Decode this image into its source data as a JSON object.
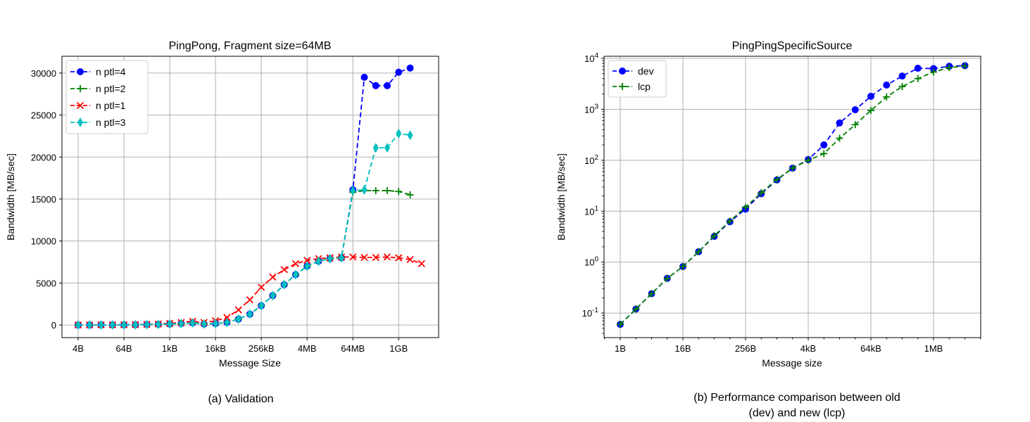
{
  "captions": {
    "left": "(a) Validation",
    "right_line1": "(b) Performance comparison between old",
    "right_line2": "(dev) and new (lcp)"
  },
  "chart_data": [
    {
      "type": "line",
      "title": "PingPong, Fragment size=64MB",
      "xlabel": "Message Size",
      "ylabel": "Bandwidth [MB/sec]",
      "x_scale": "log2",
      "x_tick_labels": [
        "4B",
        "64B",
        "1kB",
        "16kB",
        "256kB",
        "4MB",
        "64MB",
        "1GB"
      ],
      "y_ticks": [
        0,
        5000,
        10000,
        15000,
        20000,
        25000,
        30000
      ],
      "ylim": [
        -1500,
        32000
      ],
      "grid": true,
      "legend_position": "top-left",
      "x": [
        "4B",
        "8B",
        "16B",
        "32B",
        "64B",
        "128B",
        "256B",
        "512B",
        "1kB",
        "2kB",
        "4kB",
        "8kB",
        "16kB",
        "32kB",
        "64kB",
        "128kB",
        "256kB",
        "512kB",
        "1MB",
        "2MB",
        "4MB",
        "8MB",
        "16MB",
        "32MB",
        "64MB",
        "128MB",
        "256MB",
        "512MB",
        "1GB",
        "2GB",
        "4GB"
      ],
      "series": [
        {
          "name": "n ptl=4",
          "color": "#0000ff",
          "marker": "circle",
          "values": [
            2,
            5,
            10,
            15,
            20,
            30,
            50,
            80,
            120,
            180,
            250,
            120,
            180,
            300,
            700,
            1300,
            2300,
            3500,
            4800,
            6000,
            7000,
            7600,
            7900,
            8000,
            16100,
            29500,
            28500,
            28500,
            30100,
            30600,
            null
          ]
        },
        {
          "name": "n ptl=2",
          "color": "#008000",
          "marker": "plus",
          "values": [
            2,
            5,
            10,
            15,
            20,
            30,
            50,
            80,
            120,
            180,
            250,
            120,
            180,
            300,
            700,
            1300,
            2300,
            3500,
            4800,
            6000,
            7000,
            7600,
            7900,
            8000,
            15800,
            16000,
            16000,
            16000,
            15900,
            15500,
            null
          ]
        },
        {
          "name": "n ptl=1",
          "color": "#ff0000",
          "marker": "x",
          "values": [
            5,
            10,
            15,
            20,
            30,
            50,
            80,
            120,
            200,
            300,
            450,
            300,
            500,
            900,
            1800,
            3000,
            4500,
            5700,
            6600,
            7300,
            7700,
            7900,
            8000,
            8100,
            8100,
            8050,
            8050,
            8100,
            8000,
            7800,
            7300
          ]
        },
        {
          "name": "n ptl=3",
          "color": "#00bfbf",
          "marker": "diamond",
          "values": [
            2,
            5,
            10,
            15,
            20,
            30,
            50,
            80,
            120,
            180,
            250,
            120,
            180,
            300,
            700,
            1300,
            2300,
            3500,
            4800,
            6000,
            7000,
            7600,
            7900,
            8000,
            16000,
            16100,
            21100,
            21100,
            22800,
            22600,
            null
          ]
        }
      ]
    },
    {
      "type": "line",
      "title": "PingPingSpecificSource",
      "xlabel": "Message size",
      "ylabel": "Bandwidth [MB/sec]",
      "x_scale": "log2",
      "y_scale": "log10",
      "x_tick_labels": [
        "1B",
        "16B",
        "256B",
        "4kB",
        "64kB",
        "1MB"
      ],
      "y_tick_labels": [
        "10^-1",
        "10^0",
        "10^1",
        "10^2",
        "10^3",
        "10^4"
      ],
      "ylim": [
        0.033,
        11000
      ],
      "grid": true,
      "legend_position": "top-left",
      "x": [
        "1B",
        "2B",
        "4B",
        "8B",
        "16B",
        "32B",
        "64B",
        "128B",
        "256B",
        "512B",
        "1kB",
        "2kB",
        "4kB",
        "8kB",
        "16kB",
        "32kB",
        "64kB",
        "128kB",
        "256kB",
        "512kB",
        "1MB",
        "2MB",
        "4MB"
      ],
      "series": [
        {
          "name": "dev",
          "color": "#0000ff",
          "marker": "circle",
          "values": [
            0.06,
            0.12,
            0.24,
            0.48,
            0.82,
            1.6,
            3.2,
            6.2,
            11,
            22,
            41,
            70,
            103,
            200,
            540,
            980,
            1800,
            3000,
            4500,
            6400,
            6300,
            7000,
            7200
          ]
        },
        {
          "name": "lcp",
          "color": "#008000",
          "marker": "plus",
          "values": [
            0.06,
            0.12,
            0.24,
            0.48,
            0.82,
            1.6,
            3.3,
            6.4,
            12,
            23,
            42,
            70,
            100,
            135,
            270,
            500,
            950,
            1750,
            2800,
            4000,
            5400,
            6600,
            7100
          ]
        }
      ]
    }
  ]
}
